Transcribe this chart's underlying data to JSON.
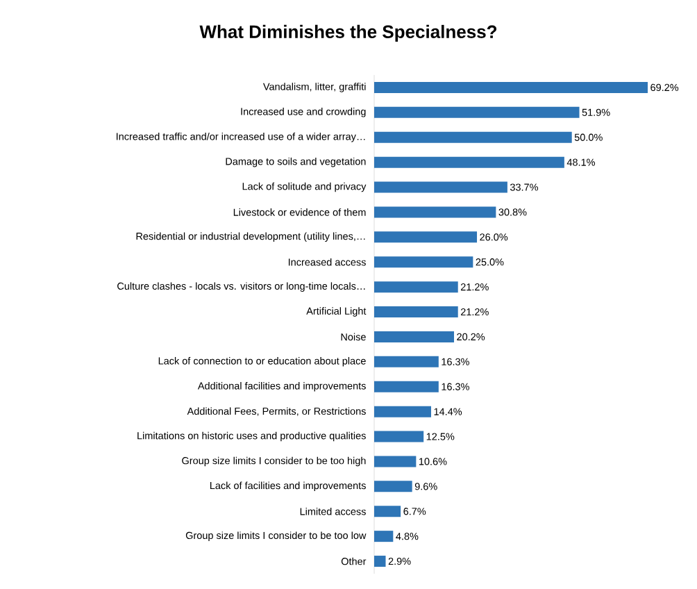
{
  "chart_data": {
    "type": "bar",
    "orientation": "horizontal",
    "title": "What Diminishes the Specialness?",
    "categories": [
      "Vandalism, litter, graffiti",
      "Increased use and crowding",
      "Increased traffic and/or increased use of a wider array…",
      "Damage to soils and vegetation",
      "Lack of solitude and privacy",
      "Livestock or evidence of them",
      "Residential or industrial development (utility lines,…",
      "Increased access",
      "Culture clashes - locals vs. visitors or long-time locals…",
      "Artificial Light",
      "Noise",
      "Lack of connection to or education about place",
      "Additional facilities and improvements",
      "Additional Fees, Permits, or Restrictions",
      "Limitations on historic uses and productive qualities",
      "Group size limits I consider to be too high",
      "Lack of facilities and improvements",
      "Limited access",
      "Group size limits I consider to be too low",
      "Other"
    ],
    "values": [
      69.2,
      51.9,
      50.0,
      48.1,
      33.7,
      30.8,
      26.0,
      25.0,
      21.2,
      21.2,
      20.2,
      16.3,
      16.3,
      14.4,
      12.5,
      10.6,
      9.6,
      6.7,
      4.8,
      2.9
    ],
    "value_labels": [
      "69.2%",
      "51.9%",
      "50.0%",
      "48.1%",
      "33.7%",
      "30.8%",
      "26.0%",
      "25.0%",
      "21.2%",
      "21.2%",
      "20.2%",
      "16.3%",
      "16.3%",
      "14.4%",
      "12.5%",
      "10.6%",
      "9.6%",
      "6.7%",
      "4.8%",
      "2.9%"
    ],
    "color": "#2e75b6"
  }
}
